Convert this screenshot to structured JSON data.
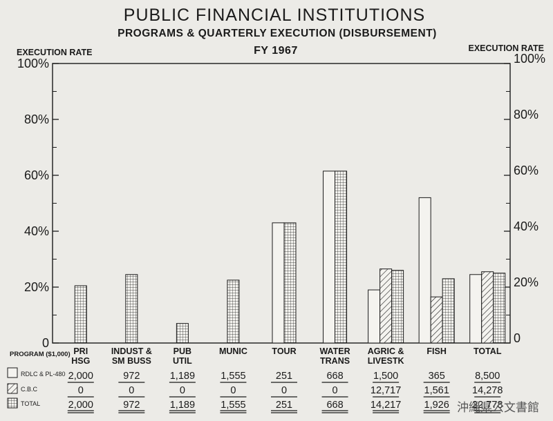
{
  "chart_data": {
    "type": "bar",
    "title": "PUBLIC FINANCIAL INSTITUTIONS",
    "subtitle": "PROGRAMS & QUARTERLY EXECUTION (DISBURSEMENT)",
    "fiscal_year": "FY 1967",
    "ylabel_left": "EXECUTION RATE",
    "ylabel_right": "EXECUTION RATE",
    "ylim": [
      0,
      100
    ],
    "yticks_left": [
      "100%",
      "80%",
      "60%",
      "40%",
      "20%",
      "0"
    ],
    "yticks_right": [
      "100%",
      "80%",
      "60%",
      "40%",
      "20%",
      "0"
    ],
    "program_label": "PROGRAM ($1,000)",
    "categories": [
      [
        "PRI",
        "HSG"
      ],
      [
        "INDUST &",
        "SM BUSS"
      ],
      [
        "PUB",
        "UTIL"
      ],
      [
        "MUNIC"
      ],
      [
        "TOUR"
      ],
      [
        "WATER",
        "TRANS"
      ],
      [
        "AGRIC &",
        "LIVESTK"
      ],
      [
        "FISH"
      ],
      [
        "TOTAL"
      ]
    ],
    "series": [
      {
        "name": "RDLC & PL-480",
        "pattern": "open",
        "values": [
          null,
          null,
          null,
          null,
          43,
          61.5,
          19,
          52,
          24.5
        ],
        "program": [
          "2,000",
          "972",
          "1,189",
          "1,555",
          "251",
          "668",
          "1,500",
          "365",
          "8,500"
        ]
      },
      {
        "name": "C.B.C",
        "pattern": "hatched",
        "values": [
          null,
          null,
          null,
          null,
          null,
          null,
          26.5,
          16.5,
          25.5
        ],
        "program": [
          "0",
          "0",
          "0",
          "0",
          "0",
          "0",
          "12,717",
          "1,561",
          "14,278"
        ]
      },
      {
        "name": "TOTAL",
        "pattern": "grid",
        "values": [
          20.5,
          24.5,
          7,
          22.5,
          43,
          61.5,
          26,
          23,
          25
        ],
        "program": [
          "2,000",
          "972",
          "1,189",
          "1,555",
          "251",
          "668",
          "14,217",
          "1,926",
          "22,778"
        ]
      }
    ],
    "grid": false,
    "legend_position": "bottom-left"
  },
  "watermark": "沖縄県公文書館"
}
